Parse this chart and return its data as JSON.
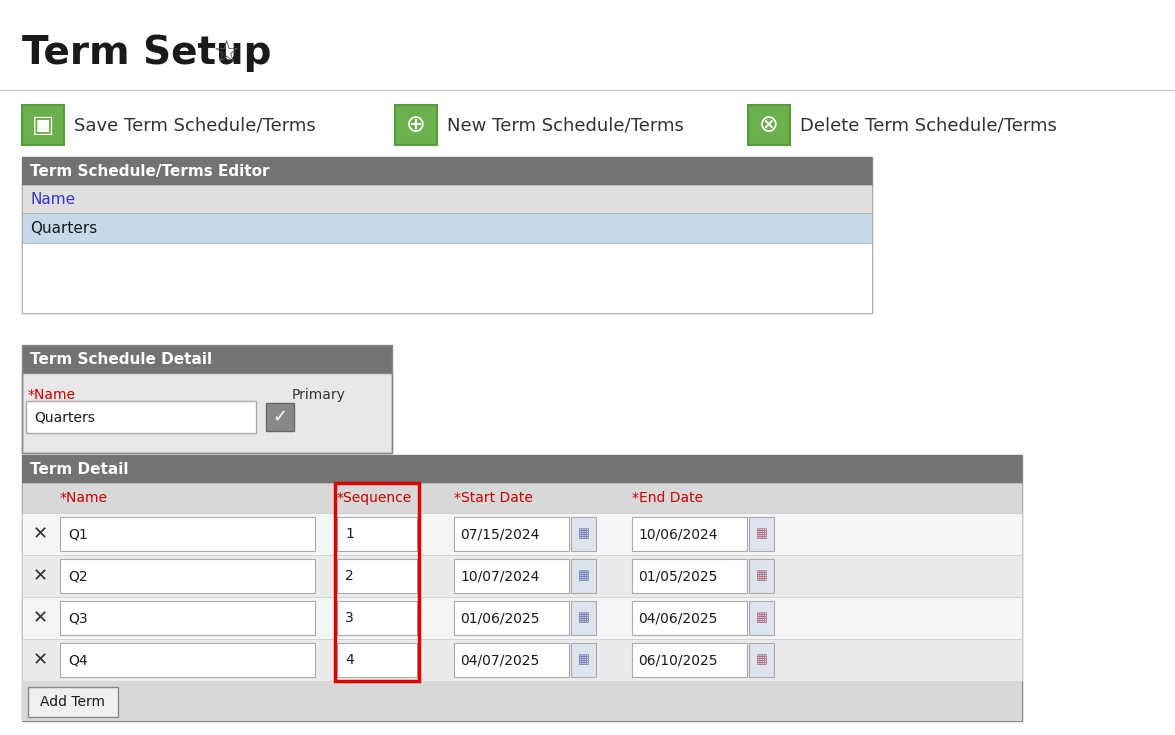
{
  "title": "Term Setup",
  "background_color": "#ffffff",
  "toolbar_buttons": [
    {
      "label": "Save Term Schedule/Terms"
    },
    {
      "label": "New Term Schedule/Terms"
    },
    {
      "label": "Delete Term Schedule/Terms"
    }
  ],
  "editor_header": "Term Schedule/Terms Editor",
  "editor_header_bg": "#737373",
  "editor_header_fg": "#ffffff",
  "editor_col_header": "Name",
  "editor_col_header_fg": "#3333cc",
  "editor_row": "Quarters",
  "editor_row_bg": "#c5d9e8",
  "detail_header": "Term Schedule Detail",
  "detail_header_bg": "#737373",
  "detail_header_fg": "#ffffff",
  "detail_name_label": "*Name",
  "detail_name_label_fg": "#cc0000",
  "detail_primary_label": "Primary",
  "detail_name_value": "Quarters",
  "term_detail_header": "Term Detail",
  "term_detail_header_bg": "#737373",
  "term_detail_header_fg": "#ffffff",
  "term_col_name": "*Name",
  "term_col_seq": "*Sequence",
  "term_col_start": "*Start Date",
  "term_col_end": "*End Date",
  "term_col_fg": "#cc0000",
  "term_rows": [
    {
      "name": "Q1",
      "sequence": "1",
      "start_date": "07/15/2024",
      "end_date": "10/06/2024"
    },
    {
      "name": "Q2",
      "sequence": "2",
      "start_date": "10/07/2024",
      "end_date": "01/05/2025"
    },
    {
      "name": "Q3",
      "sequence": "3",
      "start_date": "01/06/2025",
      "end_date": "04/06/2025"
    },
    {
      "name": "Q4",
      "sequence": "4",
      "start_date": "04/07/2025",
      "end_date": "06/10/2025"
    }
  ],
  "sequence_highlight_color": "#dd0000",
  "add_term_label": "Add Term",
  "separator_color": "#cccccc",
  "green_btn_color": "#6ab04c",
  "green_btn_dark": "#5a9a3c"
}
